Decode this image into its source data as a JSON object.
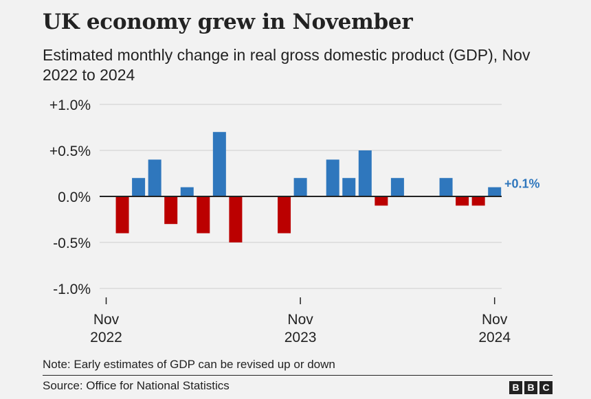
{
  "header": {
    "title": "UK economy grew in November",
    "subtitle": "Estimated monthly change in real gross domestic product (GDP), Nov 2022 to 2024"
  },
  "footer": {
    "note": "Note: Early estimates of GDP can be revised up or down",
    "source": "Source: Office for National Statistics",
    "logo_letters": [
      "B",
      "B",
      "C"
    ]
  },
  "chart_data": {
    "type": "bar",
    "title": "UK economy grew in November",
    "subtitle": "Estimated monthly change in real gross domestic product (GDP), Nov 2022 to 2024",
    "categories": [
      "Nov 2022",
      "Dec 2022",
      "Jan 2023",
      "Feb 2023",
      "Mar 2023",
      "Apr 2023",
      "May 2023",
      "Jun 2023",
      "Jul 2023",
      "Aug 2023",
      "Sep 2023",
      "Oct 2023",
      "Nov 2023",
      "Dec 2023",
      "Jan 2024",
      "Feb 2024",
      "Mar 2024",
      "Apr 2024",
      "May 2024",
      "Jun 2024",
      "Jul 2024",
      "Aug 2024",
      "Sep 2024",
      "Oct 2024",
      "Nov 2024"
    ],
    "values": [
      0.0,
      -0.4,
      0.2,
      0.4,
      -0.3,
      0.1,
      -0.4,
      0.7,
      -0.5,
      0.0,
      0.0,
      -0.4,
      0.2,
      0.0,
      0.4,
      0.2,
      0.5,
      -0.1,
      0.2,
      0.0,
      0.0,
      0.2,
      -0.1,
      -0.1,
      0.1
    ],
    "ylim": [
      -1.0,
      1.0
    ],
    "yticks": [
      1.0,
      0.5,
      0.0,
      -0.5,
      -1.0
    ],
    "ytick_labels": [
      "+1.0%",
      "+0.5%",
      "0.0%",
      "-0.5%",
      "-1.0%"
    ],
    "xtick_positions": [
      0,
      12,
      24
    ],
    "xtick_labels": [
      [
        "Nov",
        "2022"
      ],
      [
        "Nov",
        "2023"
      ],
      [
        "Nov",
        "2024"
      ]
    ],
    "annotation": {
      "index": 24,
      "text": "+0.1%"
    },
    "xlabel": "",
    "ylabel": "",
    "grid": true,
    "colors": {
      "positive": "#2f77bd",
      "negative": "#bb0000",
      "grid": "#cfcfcf",
      "zero_line": "#222222",
      "annotation": "#2f77bd",
      "text": "#222222"
    }
  }
}
